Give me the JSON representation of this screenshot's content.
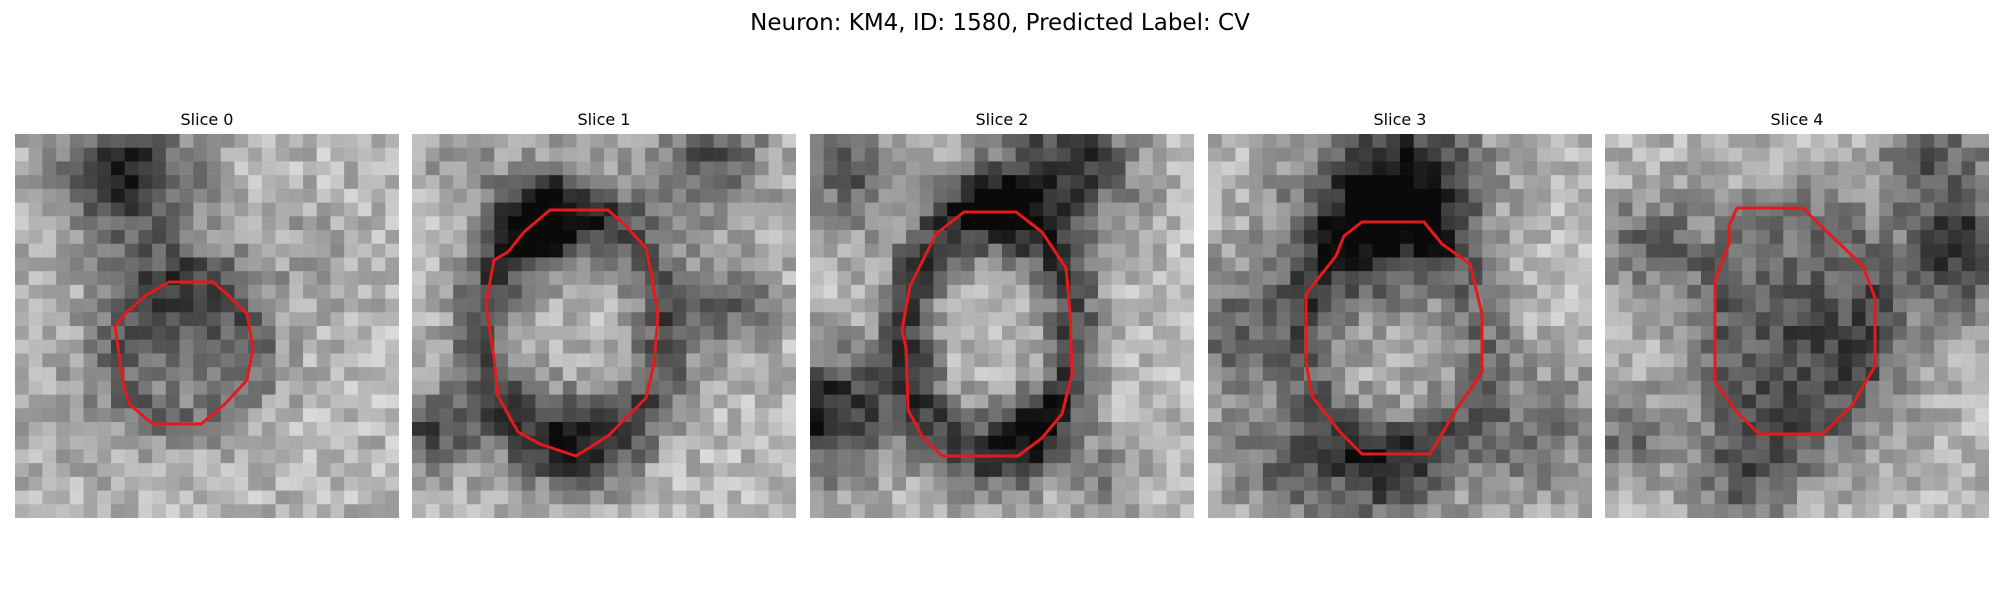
{
  "figure": {
    "title": "Neuron: KM4, ID: 1580, Predicted Label: CV",
    "contour_color": "#e41a1c",
    "colormap": "grayscale",
    "grid_size": 28
  },
  "panels": [
    {
      "title": "Slice 0",
      "contour_color": "#e41a1c"
    },
    {
      "title": "Slice 1",
      "contour_color": "#e41a1c"
    },
    {
      "title": "Slice 2",
      "contour_color": "#e41a1c"
    },
    {
      "title": "Slice 3",
      "contour_color": "#e41a1c"
    },
    {
      "title": "Slice 4",
      "contour_color": "#e41a1c"
    }
  ]
}
